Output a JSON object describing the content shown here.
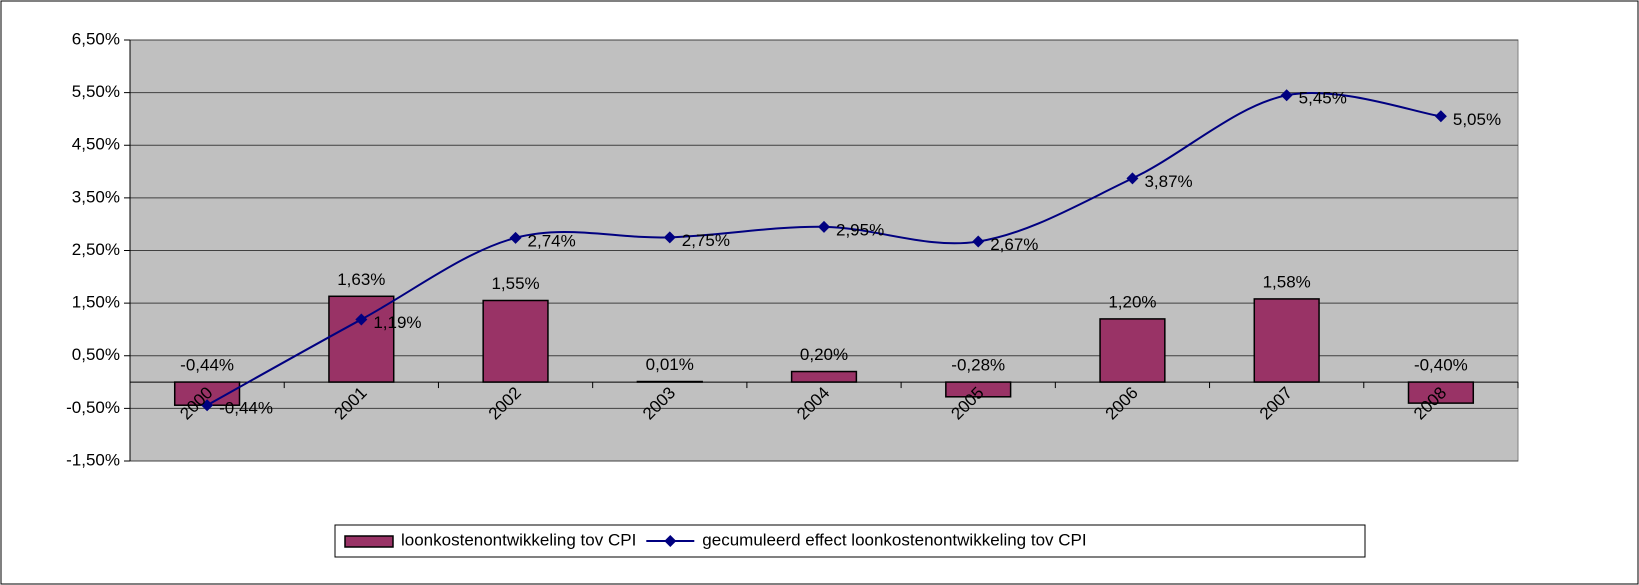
{
  "chart_data": {
    "type": "bar_line",
    "categories": [
      "2000",
      "2001",
      "2002",
      "2003",
      "2004",
      "2005",
      "2006",
      "2007",
      "2008"
    ],
    "series": [
      {
        "name": "loonkostenontwikkeling tov CPI",
        "type": "bar",
        "color": "#993366",
        "values": [
          -0.44,
          1.63,
          1.55,
          0.01,
          0.2,
          -0.28,
          1.2,
          1.58,
          -0.4
        ],
        "value_labels": [
          "-0,44%",
          "1,63%",
          "1,55%",
          "0,01%",
          "0,20%",
          "-0,28%",
          "1,20%",
          "1,58%",
          "-0,40%"
        ]
      },
      {
        "name": "gecumuleerd effect loonkostenontwikkeling tov CPI",
        "type": "line",
        "color": "#000080",
        "values": [
          -0.44,
          1.19,
          2.74,
          2.75,
          2.95,
          2.67,
          3.87,
          5.45,
          5.05
        ],
        "value_labels": [
          "-0,44%",
          "1,19%",
          "2,74%",
          "2,75%",
          "2,95%",
          "2,67%",
          "3,87%",
          "5,45%",
          "5,05%"
        ]
      }
    ],
    "ylim": [
      -1.5,
      6.5
    ],
    "yticks": [
      {
        "value": -1.5,
        "label": "-1,50%"
      },
      {
        "value": -0.5,
        "label": "-0,50%"
      },
      {
        "value": 0.5,
        "label": "0,50%"
      },
      {
        "value": 1.5,
        "label": "1,50%"
      },
      {
        "value": 2.5,
        "label": "2,50%"
      },
      {
        "value": 3.5,
        "label": "3,50%"
      },
      {
        "value": 4.5,
        "label": "4,50%"
      },
      {
        "value": 5.5,
        "label": "5,50%"
      },
      {
        "value": 6.5,
        "label": "6,50%"
      }
    ],
    "grid": true,
    "plot_background": "#c0c0c0",
    "legend": "bottom"
  }
}
